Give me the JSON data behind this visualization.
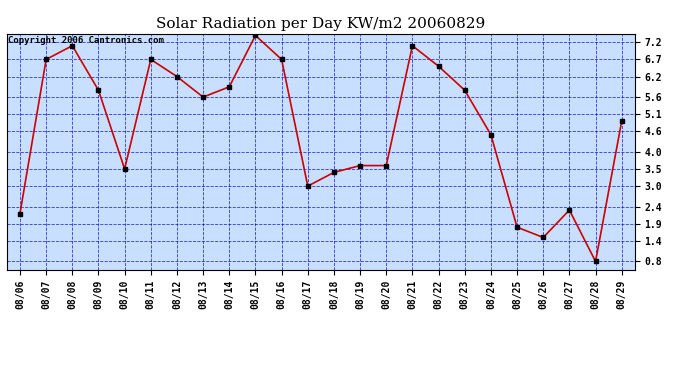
{
  "title": "Solar Radiation per Day KW/m2 20060829",
  "copyright": "Copyright 2006 Cantronics.com",
  "dates": [
    "08/06",
    "08/07",
    "08/08",
    "08/09",
    "08/10",
    "08/11",
    "08/12",
    "08/13",
    "08/14",
    "08/15",
    "08/16",
    "08/17",
    "08/18",
    "08/19",
    "08/20",
    "08/21",
    "08/22",
    "08/23",
    "08/24",
    "08/25",
    "08/26",
    "08/27",
    "08/28",
    "08/29"
  ],
  "values": [
    2.2,
    6.7,
    7.1,
    5.8,
    3.5,
    6.7,
    6.2,
    5.6,
    5.9,
    7.4,
    6.7,
    3.0,
    3.4,
    3.6,
    3.6,
    7.1,
    6.5,
    5.8,
    4.5,
    1.8,
    1.5,
    2.3,
    0.8,
    4.9
  ],
  "line_color": "#cc0000",
  "marker_color": "#000000",
  "plot_bg_color": "#c8dfff",
  "grid_color": "#0000bb",
  "yticks": [
    0.8,
    1.4,
    1.9,
    2.4,
    3.0,
    3.5,
    4.0,
    4.6,
    5.1,
    5.6,
    6.2,
    6.7,
    7.2
  ],
  "ylim": [
    0.55,
    7.45
  ],
  "title_fontsize": 11,
  "copyright_fontsize": 6.5,
  "tick_fontsize": 7,
  "ytick_fontsize": 7
}
